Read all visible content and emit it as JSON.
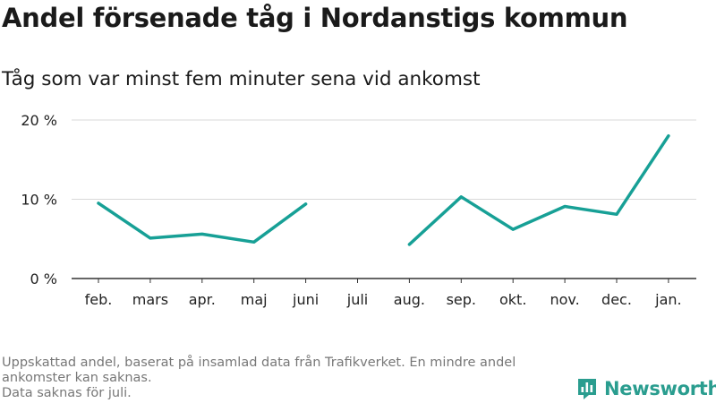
{
  "title": "Andel försenade tåg i Nordanstigs kommun",
  "subtitle": "Tåg som var minst fem minuter sena vid ankomst",
  "footer": {
    "line1": "Uppskattad andel, baserat på insamlad data från Trafikverket. En mindre andel",
    "line2": "ankomster kan saknas.",
    "line3": "Data saknas för juli."
  },
  "brand": {
    "name": "Newsworthy",
    "icon": "bar-chart-logo-icon",
    "color": "#2a9d8f"
  },
  "chart_data": {
    "type": "line",
    "title": "Andel försenade tåg i Nordanstigs kommun",
    "subtitle": "Tåg som var minst fem minuter sena vid ankomst",
    "xlabel": "",
    "ylabel": "",
    "categories": [
      "feb.",
      "mars",
      "apr.",
      "maj",
      "juni",
      "juli",
      "aug.",
      "sep.",
      "okt.",
      "nov.",
      "dec.",
      "jan."
    ],
    "series": [
      {
        "values": [
          9.5,
          5.1,
          5.6,
          4.6,
          9.4,
          null,
          4.3,
          10.3,
          6.2,
          9.1,
          8.1,
          18.0
        ],
        "color": "#17a096"
      }
    ],
    "ylim": [
      0,
      20
    ],
    "yticks": [
      0,
      10,
      20
    ],
    "ytick_labels": [
      "0 %",
      "10 %",
      "20 %"
    ],
    "grid": true,
    "legend": "none"
  }
}
